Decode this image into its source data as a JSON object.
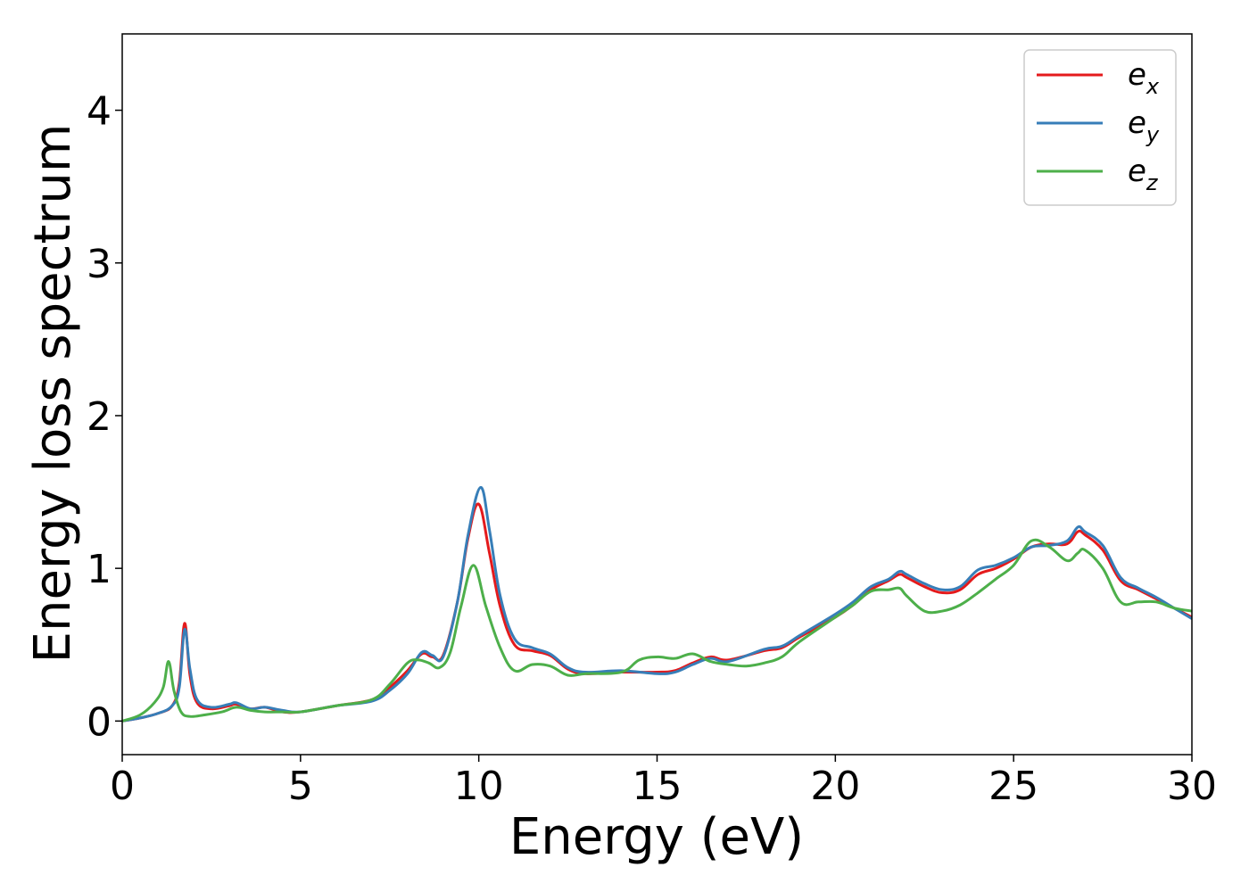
{
  "chart_data": {
    "type": "line",
    "xlabel": "Energy (eV)",
    "ylabel": "Energy loss spectrum",
    "xlim": [
      0,
      30
    ],
    "ylim": [
      -0.22,
      4.5
    ],
    "xticks": [
      "0",
      "5",
      "10",
      "15",
      "20",
      "25",
      "30"
    ],
    "yticks": [
      "0",
      "1",
      "2",
      "3",
      "4"
    ],
    "grid": false,
    "legend_position": "top-right",
    "series": [
      {
        "name": "e_x",
        "label_base": "e",
        "label_sub": "x",
        "color": "#e41a1c",
        "x": [
          0,
          0.5,
          1.0,
          1.4,
          1.6,
          1.75,
          1.9,
          2.1,
          2.5,
          3.0,
          3.2,
          3.6,
          4.0,
          4.5,
          5.0,
          6.0,
          7.0,
          7.5,
          8.0,
          8.4,
          8.7,
          9.0,
          9.4,
          9.7,
          10.0,
          10.3,
          10.6,
          11.0,
          11.5,
          12.0,
          12.5,
          13.0,
          14.0,
          15.0,
          15.5,
          16.0,
          16.5,
          17.0,
          18.0,
          18.5,
          19.0,
          20.0,
          20.5,
          21.0,
          21.5,
          21.8,
          22.0,
          22.5,
          23.0,
          23.5,
          24.0,
          24.5,
          25.0,
          25.5,
          26.0,
          26.5,
          26.8,
          27.0,
          27.5,
          28.0,
          28.5,
          29.0,
          29.5,
          30.0
        ],
        "y": [
          0.0,
          0.02,
          0.05,
          0.1,
          0.25,
          0.64,
          0.3,
          0.12,
          0.08,
          0.1,
          0.11,
          0.08,
          0.09,
          0.06,
          0.06,
          0.1,
          0.14,
          0.22,
          0.33,
          0.44,
          0.42,
          0.43,
          0.78,
          1.2,
          1.42,
          1.1,
          0.75,
          0.5,
          0.46,
          0.43,
          0.34,
          0.31,
          0.32,
          0.32,
          0.33,
          0.38,
          0.42,
          0.4,
          0.46,
          0.48,
          0.55,
          0.68,
          0.76,
          0.86,
          0.92,
          0.96,
          0.94,
          0.88,
          0.84,
          0.86,
          0.96,
          1.0,
          1.06,
          1.14,
          1.16,
          1.16,
          1.24,
          1.22,
          1.12,
          0.92,
          0.86,
          0.8,
          0.74,
          0.68
        ]
      },
      {
        "name": "e_y",
        "label_base": "e",
        "label_sub": "y",
        "color": "#377eb8",
        "x": [
          0,
          0.5,
          1.0,
          1.4,
          1.6,
          1.75,
          1.9,
          2.1,
          2.5,
          3.0,
          3.2,
          3.6,
          4.0,
          4.5,
          5.0,
          6.0,
          7.0,
          7.5,
          8.0,
          8.4,
          8.7,
          9.0,
          9.4,
          9.7,
          10.05,
          10.3,
          10.6,
          11.0,
          11.5,
          12.0,
          12.5,
          13.0,
          14.0,
          15.0,
          15.5,
          16.0,
          16.5,
          17.0,
          18.0,
          18.5,
          19.0,
          20.0,
          20.5,
          21.0,
          21.5,
          21.8,
          22.0,
          22.5,
          23.0,
          23.5,
          24.0,
          24.5,
          25.0,
          25.5,
          26.0,
          26.5,
          26.8,
          27.0,
          27.5,
          28.0,
          28.5,
          29.0,
          29.5,
          30.0
        ],
        "y": [
          0.0,
          0.02,
          0.05,
          0.1,
          0.22,
          0.6,
          0.34,
          0.14,
          0.09,
          0.11,
          0.12,
          0.08,
          0.09,
          0.07,
          0.06,
          0.1,
          0.13,
          0.2,
          0.31,
          0.45,
          0.43,
          0.42,
          0.78,
          1.22,
          1.53,
          1.25,
          0.82,
          0.54,
          0.48,
          0.44,
          0.35,
          0.32,
          0.33,
          0.31,
          0.32,
          0.37,
          0.41,
          0.39,
          0.47,
          0.49,
          0.56,
          0.7,
          0.78,
          0.88,
          0.93,
          0.98,
          0.96,
          0.9,
          0.86,
          0.88,
          0.99,
          1.02,
          1.07,
          1.14,
          1.15,
          1.18,
          1.27,
          1.24,
          1.15,
          0.94,
          0.87,
          0.81,
          0.74,
          0.67
        ]
      },
      {
        "name": "e_z",
        "label_base": "e",
        "label_sub": "z",
        "color": "#4daf4a",
        "x": [
          0,
          0.5,
          0.9,
          1.15,
          1.3,
          1.45,
          1.65,
          1.9,
          2.3,
          2.8,
          3.2,
          3.6,
          4.0,
          4.5,
          5.0,
          6.0,
          7.0,
          7.5,
          8.0,
          8.3,
          8.6,
          8.9,
          9.2,
          9.5,
          9.85,
          10.2,
          10.6,
          11.0,
          11.5,
          12.0,
          12.5,
          13.0,
          14.0,
          14.5,
          15.0,
          15.5,
          16.0,
          16.5,
          17.0,
          17.5,
          18.0,
          18.5,
          19.0,
          20.0,
          20.5,
          21.0,
          21.5,
          21.8,
          22.0,
          22.5,
          23.0,
          23.5,
          24.0,
          24.5,
          25.0,
          25.5,
          26.0,
          26.5,
          26.8,
          27.0,
          27.5,
          28.0,
          28.5,
          29.0,
          29.5,
          30.0
        ],
        "y": [
          0.0,
          0.04,
          0.12,
          0.22,
          0.39,
          0.2,
          0.06,
          0.03,
          0.04,
          0.06,
          0.09,
          0.07,
          0.06,
          0.06,
          0.06,
          0.1,
          0.14,
          0.24,
          0.38,
          0.4,
          0.38,
          0.35,
          0.45,
          0.75,
          1.02,
          0.75,
          0.48,
          0.33,
          0.37,
          0.36,
          0.3,
          0.31,
          0.32,
          0.4,
          0.42,
          0.41,
          0.44,
          0.39,
          0.37,
          0.36,
          0.38,
          0.42,
          0.52,
          0.68,
          0.76,
          0.85,
          0.86,
          0.87,
          0.82,
          0.72,
          0.72,
          0.76,
          0.84,
          0.93,
          1.02,
          1.18,
          1.14,
          1.05,
          1.1,
          1.12,
          1.0,
          0.78,
          0.78,
          0.78,
          0.74,
          0.72
        ]
      }
    ]
  }
}
